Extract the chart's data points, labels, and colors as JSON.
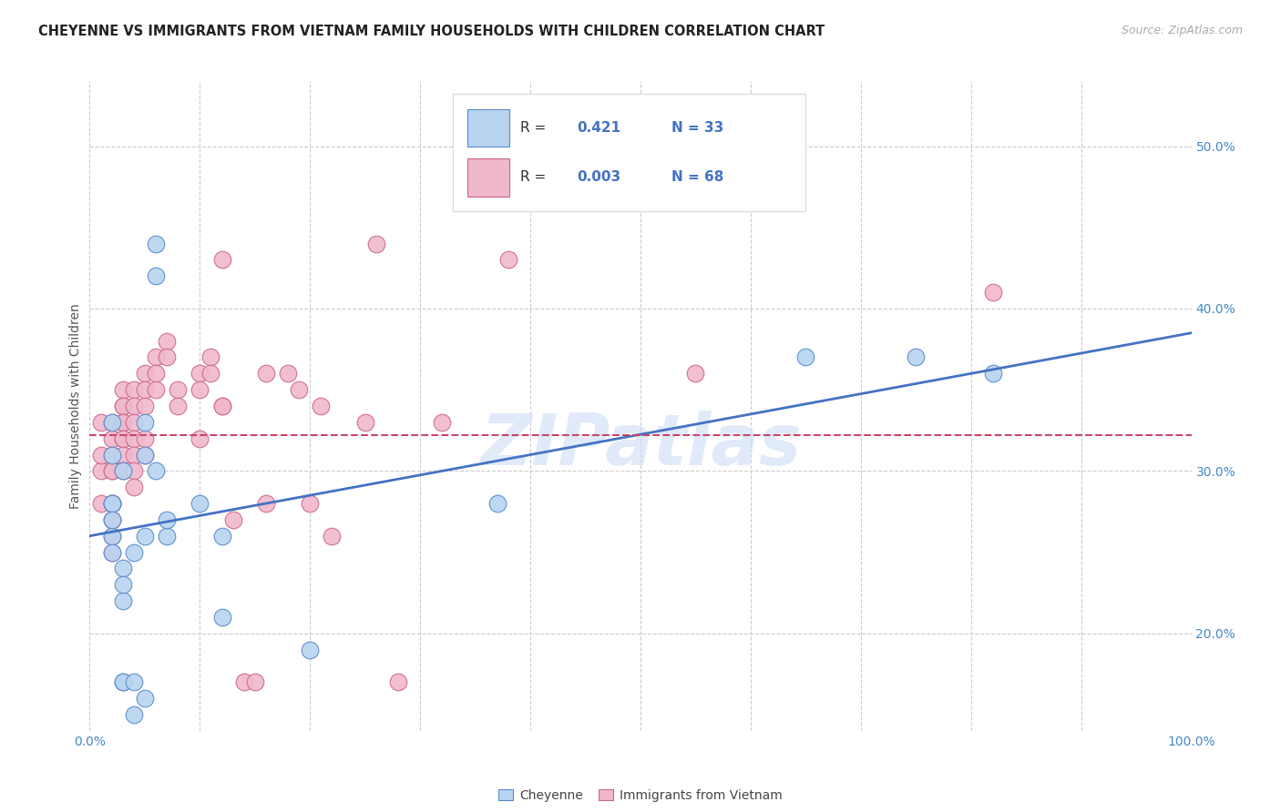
{
  "title": "CHEYENNE VS IMMIGRANTS FROM VIETNAM FAMILY HOUSEHOLDS WITH CHILDREN CORRELATION CHART",
  "source": "Source: ZipAtlas.com",
  "ylabel": "Family Households with Children",
  "watermark": "ZIPatlas",
  "legend_blue_label": "Cheyenne",
  "legend_pink_label": "Immigrants from Vietnam",
  "legend_blue_R": "0.421",
  "legend_blue_N": "33",
  "legend_pink_R": "0.003",
  "legend_pink_N": "68",
  "yticks": [
    20.0,
    30.0,
    40.0,
    50.0
  ],
  "ytick_labels": [
    "20.0%",
    "30.0%",
    "40.0%",
    "50.0%"
  ],
  "xlim": [
    0,
    100
  ],
  "ylim": [
    14,
    54
  ],
  "blue_fill": "#b8d4f0",
  "pink_fill": "#f0b8cc",
  "blue_edge": "#5588cc",
  "pink_edge": "#cc6688",
  "line_blue_color": "#4472c4",
  "line_pink_color": "#cc4466",
  "grid_color": "#cccccc",
  "background_color": "#ffffff",
  "title_color": "#222222",
  "axis_tick_color": "#4488cc",
  "ylabel_color": "#555555",
  "legend_text_color": "#4472c4",
  "legend_label_color": "#333333",
  "blue_points_x": [
    2,
    2,
    2,
    2,
    2,
    2,
    2,
    3,
    3,
    3,
    3,
    3,
    3,
    4,
    4,
    4,
    5,
    5,
    5,
    5,
    6,
    6,
    6,
    7,
    7,
    10,
    12,
    12,
    20,
    37,
    65,
    75,
    82
  ],
  "blue_points_y": [
    26,
    31,
    33,
    28,
    28,
    27,
    25,
    30,
    24,
    22,
    23,
    17,
    17,
    25,
    17,
    15,
    33,
    31,
    26,
    16,
    42,
    44,
    30,
    26,
    27,
    28,
    26,
    21,
    19,
    28,
    37,
    37,
    36
  ],
  "pink_points_x": [
    1,
    1,
    1,
    1,
    2,
    2,
    2,
    2,
    2,
    2,
    2,
    2,
    2,
    2,
    2,
    3,
    3,
    3,
    3,
    3,
    3,
    3,
    3,
    3,
    4,
    4,
    4,
    4,
    4,
    4,
    4,
    5,
    5,
    5,
    5,
    5,
    6,
    6,
    6,
    7,
    7,
    8,
    8,
    10,
    10,
    10,
    11,
    11,
    12,
    12,
    12,
    13,
    14,
    15,
    16,
    16,
    18,
    19,
    20,
    21,
    22,
    25,
    26,
    28,
    32,
    38,
    55,
    82
  ],
  "pink_points_y": [
    30,
    31,
    33,
    28,
    33,
    32,
    31,
    30,
    30,
    28,
    28,
    27,
    27,
    26,
    25,
    35,
    34,
    34,
    33,
    33,
    32,
    32,
    31,
    30,
    35,
    34,
    33,
    32,
    31,
    30,
    29,
    36,
    35,
    34,
    32,
    31,
    37,
    36,
    35,
    38,
    37,
    35,
    34,
    36,
    35,
    32,
    37,
    36,
    43,
    34,
    34,
    27,
    17,
    17,
    36,
    28,
    36,
    35,
    28,
    34,
    26,
    33,
    44,
    17,
    33,
    43,
    36,
    41
  ],
  "blue_line_y0": 26.0,
  "blue_line_y1": 38.5,
  "pink_line_y": 32.2,
  "title_fontsize": 10.5,
  "label_fontsize": 10,
  "tick_fontsize": 10,
  "source_fontsize": 9,
  "legend_fontsize": 11
}
